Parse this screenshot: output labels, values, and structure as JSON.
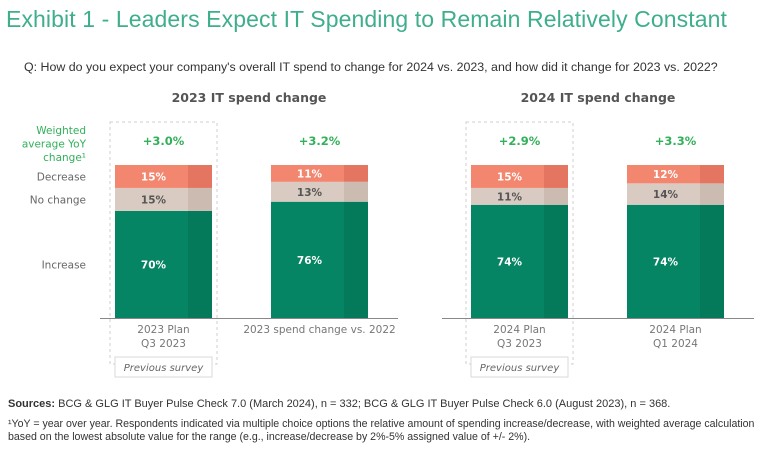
{
  "title": "Exhibit 1 - Leaders Expect IT Spending to Remain Relatively Constant",
  "question": "Q: How do you expect your company's overall IT spend to change for 2024 vs. 2023, and how did it change for 2023 vs. 2022?",
  "row_labels": {
    "weighted": [
      "Weighted",
      "average YoY",
      "change¹"
    ],
    "decrease": "Decrease",
    "no_change": "No change",
    "increase": "Increase"
  },
  "colors": {
    "increase": "#058563",
    "increase_dark": "#047a5a",
    "no_change": "#d9cbc1",
    "no_change_dark": "#cbbbb0",
    "decrease": "#f3866f",
    "decrease_dark": "#e37561",
    "accent": "#3fae8d",
    "weighted_text": "#32b05a"
  },
  "previous_survey_label": "Previous survey",
  "sources_label": "Sources:",
  "sources_text": " BCG & GLG IT Buyer Pulse Check 7.0 (March 2024), n = 332; BCG & GLG IT Buyer Pulse Check 6.0 (August 2023), n = 368.",
  "footnote": "¹YoY = year over year. Respondents indicated via multiple choice options the relative amount of spending increase/decrease, with weighted average calculation based on the lowest absolute value for the range (e.g., increase/decrease by 2%-5% assigned value of +/- 2%).",
  "chart_data": [
    {
      "type": "bar",
      "stacked": true,
      "title": "2023 IT spend change",
      "categories": [
        [
          "2023 Plan",
          "Q3 2023"
        ],
        [
          "2023 spend change vs. 2022"
        ]
      ],
      "previous_survey": [
        true,
        false
      ],
      "weighted_avg": [
        "+3.0%",
        "+3.2%"
      ],
      "series": [
        {
          "name": "Increase",
          "values": [
            70,
            76
          ]
        },
        {
          "name": "No change",
          "values": [
            15,
            13
          ]
        },
        {
          "name": "Decrease",
          "values": [
            15,
            11
          ]
        }
      ],
      "ylim": [
        0,
        100
      ]
    },
    {
      "type": "bar",
      "stacked": true,
      "title": "2024 IT spend change",
      "categories": [
        [
          "2024 Plan",
          "Q3 2023"
        ],
        [
          "2024 Plan",
          "Q1 2024"
        ]
      ],
      "previous_survey": [
        true,
        false
      ],
      "weighted_avg": [
        "+2.9%",
        "+3.3%"
      ],
      "series": [
        {
          "name": "Increase",
          "values": [
            74,
            74
          ]
        },
        {
          "name": "No change",
          "values": [
            11,
            14
          ]
        },
        {
          "name": "Decrease",
          "values": [
            15,
            12
          ]
        }
      ],
      "ylim": [
        0,
        100
      ]
    }
  ]
}
